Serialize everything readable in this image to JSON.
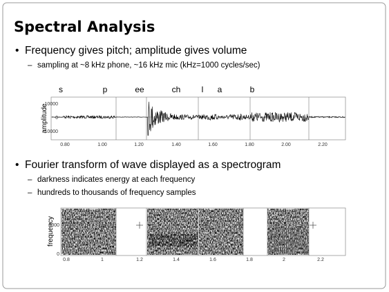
{
  "title": "Spectral Analysis",
  "bullets": [
    {
      "text": "Frequency gives pitch; amplitude gives volume",
      "subs": [
        "sampling at ~8 kHz phone, ~16 kHz mic (kHz=1000 cycles/sec)"
      ]
    },
    {
      "text": "Fourier transform of wave displayed as a spectrogram",
      "subs": [
        "darkness indicates energy at each frequency",
        "hundreds to thousands of frequency samples"
      ]
    }
  ],
  "waveform": {
    "segments": [
      "s",
      "p",
      "ee",
      "ch",
      "l",
      "a",
      "b"
    ],
    "y_label": "amplitude",
    "y_ticks": [
      "10000",
      "0",
      "-10000"
    ],
    "x_ticks": [
      "0.80",
      "1.00",
      "1.20",
      "1.40",
      "1.60",
      "1.80",
      "2.00",
      "2.20"
    ]
  },
  "spectrogram": {
    "y_label": "frequency",
    "y_ticks": [
      "5000",
      "0"
    ],
    "x_ticks": [
      "0.8",
      "1",
      "1.2",
      "1.4",
      "1.6",
      "1.8",
      "2",
      "2.2"
    ]
  }
}
